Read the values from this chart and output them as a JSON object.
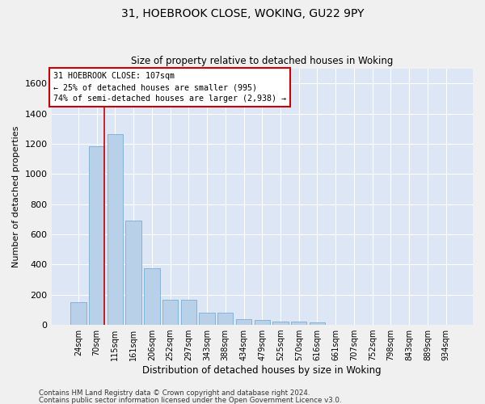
{
  "title1": "31, HOEBROOK CLOSE, WOKING, GU22 9PY",
  "title2": "Size of property relative to detached houses in Woking",
  "xlabel": "Distribution of detached houses by size in Woking",
  "ylabel": "Number of detached properties",
  "bar_color": "#b8d0e8",
  "bar_edge_color": "#7aadd4",
  "vline_color": "#cc0000",
  "categories": [
    "24sqm",
    "70sqm",
    "115sqm",
    "161sqm",
    "206sqm",
    "252sqm",
    "297sqm",
    "343sqm",
    "388sqm",
    "434sqm",
    "479sqm",
    "525sqm",
    "570sqm",
    "616sqm",
    "661sqm",
    "707sqm",
    "752sqm",
    "798sqm",
    "843sqm",
    "889sqm",
    "934sqm"
  ],
  "values": [
    148,
    1185,
    1262,
    690,
    375,
    168,
    168,
    82,
    82,
    37,
    35,
    22,
    22,
    14,
    0,
    0,
    0,
    0,
    0,
    0,
    0
  ],
  "ylim": [
    0,
    1700
  ],
  "yticks": [
    0,
    200,
    400,
    600,
    800,
    1000,
    1200,
    1400,
    1600
  ],
  "annotation_text": "31 HOEBROOK CLOSE: 107sqm\n← 25% of detached houses are smaller (995)\n74% of semi-detached houses are larger (2,938) →",
  "footnote1": "Contains HM Land Registry data © Crown copyright and database right 2024.",
  "footnote2": "Contains public sector information licensed under the Open Government Licence v3.0.",
  "fig_bg_color": "#f0f0f0",
  "plot_bg_color": "#dce6f5",
  "grid_color": "#ffffff"
}
